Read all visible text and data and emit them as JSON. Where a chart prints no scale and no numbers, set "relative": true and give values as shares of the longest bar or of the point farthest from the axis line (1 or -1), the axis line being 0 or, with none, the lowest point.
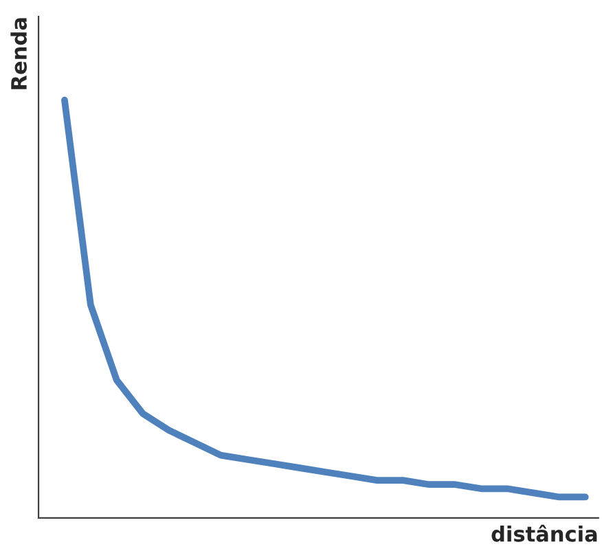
{
  "chart_data": {
    "type": "line",
    "xlabel": "distância",
    "ylabel": "Renda",
    "relative": true,
    "tick_labels": false,
    "legend": false,
    "categories": [
      null,
      null,
      null,
      null,
      null,
      null,
      null,
      null,
      null,
      null,
      null,
      null,
      null,
      null,
      null,
      null,
      null,
      null,
      null,
      null,
      null
    ],
    "series": [
      {
        "color": "#4f81bd",
        "values": [
          1.0,
          0.51,
          0.33,
          0.25,
          0.21,
          0.18,
          0.15,
          0.14,
          0.13,
          0.12,
          0.11,
          0.1,
          0.09,
          0.09,
          0.08,
          0.08,
          0.07,
          0.07,
          0.06,
          0.05,
          0.05
        ]
      }
    ]
  }
}
